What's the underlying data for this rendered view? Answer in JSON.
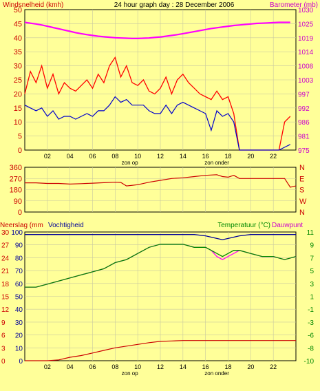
{
  "chart_data": [
    {
      "type": "line",
      "title": "24 hour graph day : 28 December 2006",
      "ylabel": "Windsnelheid (kmh)",
      "y2label": "Barometer (mb)",
      "ylim": [
        0,
        50
      ],
      "y2lim": [
        975,
        1030
      ],
      "yticks": [
        0,
        5,
        10,
        15,
        20,
        25,
        30,
        35,
        40,
        45,
        50
      ],
      "y2ticks": [
        975,
        981,
        986,
        992,
        997,
        1003,
        1008,
        1014,
        1019,
        1025,
        1030
      ],
      "xlim": [
        0,
        24
      ],
      "xticks": [
        "02",
        "04",
        "06",
        "08",
        "10",
        "12",
        "14",
        "16",
        "18",
        "20",
        "22"
      ],
      "annotations": [
        "zon op",
        "zon onder"
      ],
      "annotation_x": [
        9.3,
        17
      ],
      "colors": {
        "gust": "#FF0000",
        "wind": "#0000CC",
        "barometer": "#FF00FF"
      },
      "x": [
        0,
        0.5,
        1,
        1.5,
        2,
        2.5,
        3,
        3.5,
        4,
        4.5,
        5,
        5.5,
        6,
        6.5,
        7,
        7.5,
        8,
        8.5,
        9,
        9.5,
        10,
        10.5,
        11,
        11.5,
        12,
        12.5,
        13,
        13.5,
        14,
        14.5,
        15,
        15.5,
        16,
        16.5,
        17,
        17.5,
        18,
        18.5,
        19,
        19.5,
        20,
        20.5,
        21,
        21.5,
        22,
        22.5,
        23,
        23.5
      ],
      "series": [
        {
          "name": "gust",
          "values": [
            20,
            28,
            24,
            30,
            22,
            27,
            20,
            24,
            22,
            21,
            23,
            25,
            22,
            27,
            24,
            30,
            33,
            26,
            30,
            24,
            23,
            25,
            21,
            20,
            22,
            26,
            20,
            25,
            27,
            24,
            22,
            20,
            19,
            18,
            21,
            18,
            19,
            13,
            0,
            0,
            0,
            0,
            0,
            0,
            0,
            0,
            10,
            12
          ]
        },
        {
          "name": "wind",
          "values": [
            16,
            15,
            14,
            15,
            12,
            14,
            11,
            12,
            12,
            11,
            12,
            13,
            12,
            14,
            14,
            16,
            19,
            17,
            18,
            16,
            16,
            16,
            14,
            13,
            13,
            16,
            13,
            16,
            17,
            16,
            15,
            14,
            13,
            7,
            14,
            12,
            13,
            10,
            0,
            0,
            0,
            0,
            0,
            0,
            0,
            0,
            1,
            2
          ]
        },
        {
          "name": "barometer",
          "values": [
            1025,
            1024.7,
            1024.4,
            1024,
            1023.5,
            1023,
            1022.5,
            1022,
            1021.5,
            1021,
            1020.6,
            1020.2,
            1019.9,
            1019.6,
            1019.4,
            1019.2,
            1019,
            1018.9,
            1018.8,
            1018.7,
            1018.7,
            1018.8,
            1018.9,
            1019.1,
            1019.3,
            1019.6,
            1019.9,
            1020.2,
            1020.6,
            1021,
            1021.4,
            1021.8,
            1022.2,
            1022.6,
            1022.9,
            1023.2,
            1023.5,
            1023.8,
            1024,
            1024.2,
            1024.4,
            1024.6,
            1024.7,
            1024.8,
            1024.9,
            1025,
            1025,
            1025
          ]
        }
      ]
    },
    {
      "type": "line",
      "ylim": [
        0,
        360
      ],
      "yticks": [
        0,
        90,
        180,
        270,
        360
      ],
      "y2ticks": [
        "N",
        "W",
        "S",
        "E",
        "N"
      ],
      "xlim": [
        0,
        24
      ],
      "colors": {
        "direction": "#CC0000"
      },
      "x": [
        0,
        1,
        2,
        3,
        4,
        5,
        6,
        7,
        8,
        8.5,
        9,
        10,
        11,
        12,
        13,
        14,
        15,
        16,
        17,
        17.5,
        18,
        18.5,
        19,
        20,
        21,
        22,
        23,
        23.5,
        24
      ],
      "series": [
        {
          "name": "direction",
          "values": [
            235,
            235,
            230,
            230,
            225,
            228,
            232,
            236,
            240,
            238,
            210,
            220,
            240,
            255,
            270,
            275,
            285,
            295,
            300,
            285,
            280,
            295,
            270,
            270,
            270,
            270,
            270,
            200,
            210
          ]
        }
      ]
    },
    {
      "type": "line",
      "ylabel": "Neerslag (mm",
      "ylabel2": "Vochtigheid",
      "y2label": "Temperatuur (°C)",
      "y2label2": "Dauwpunt",
      "xlim": [
        0,
        24
      ],
      "xticks": [
        "02",
        "04",
        "06",
        "08",
        "10",
        "12",
        "14",
        "16",
        "18",
        "20",
        "22"
      ],
      "annotations": [
        "zon op",
        "zon onder"
      ],
      "annotation_x": [
        9.3,
        17
      ],
      "rain_ticks": [
        0,
        3,
        6,
        9,
        12,
        15,
        18,
        21,
        24,
        27,
        30
      ],
      "humidity_ticks": [
        0,
        10,
        20,
        30,
        40,
        50,
        60,
        70,
        80,
        90,
        100
      ],
      "temp_ticks": [
        -10,
        -8,
        -6,
        -3,
        -1,
        1,
        3,
        5,
        7,
        9,
        11
      ],
      "temp_range": [
        -10,
        11
      ],
      "colors": {
        "humidity": "#000099",
        "temperature": "#008800",
        "dewpoint": "#FF00FF",
        "rain": "#CC0000"
      },
      "x": [
        0,
        1,
        2,
        3,
        4,
        5,
        6,
        7,
        8,
        9,
        10,
        11,
        12,
        13,
        14,
        15,
        16,
        16.5,
        17,
        17.5,
        18,
        18.5,
        19,
        20,
        21,
        22,
        23,
        24
      ],
      "series": [
        {
          "name": "humidity",
          "values": [
            98,
            98,
            98,
            98,
            98,
            98,
            98,
            98,
            98,
            98,
            98,
            98,
            98,
            98,
            98,
            98,
            97,
            96,
            95,
            94,
            95,
            96,
            97,
            98,
            98,
            98,
            98,
            98
          ]
        },
        {
          "name": "temperature",
          "values": [
            2,
            2,
            2.5,
            3,
            3.5,
            4,
            4.5,
            5,
            6,
            6.5,
            7.5,
            8.5,
            9,
            9,
            9,
            8.5,
            8.5,
            8,
            7.5,
            7,
            7.5,
            8,
            8,
            7.5,
            7,
            7,
            6.5,
            7
          ]
        },
        {
          "name": "dewpoint",
          "values": [
            2,
            2,
            2.5,
            3,
            3.5,
            4,
            4.5,
            5,
            6,
            6.5,
            7.5,
            8.5,
            9,
            9,
            9,
            8.5,
            8.5,
            8,
            7,
            6.5,
            7,
            7.5,
            8,
            7.5,
            7,
            7,
            6.5,
            7
          ]
        },
        {
          "name": "rain",
          "values": [
            0,
            0,
            0,
            0.2,
            0.8,
            1.2,
            1.8,
            2.4,
            3,
            3.4,
            3.8,
            4.2,
            4.5,
            4.6,
            4.7,
            4.7,
            4.7,
            4.7,
            4.7,
            4.7,
            4.7,
            4.7,
            4.7,
            4.7,
            4.7,
            4.7,
            4.7,
            4.7
          ]
        }
      ]
    }
  ]
}
